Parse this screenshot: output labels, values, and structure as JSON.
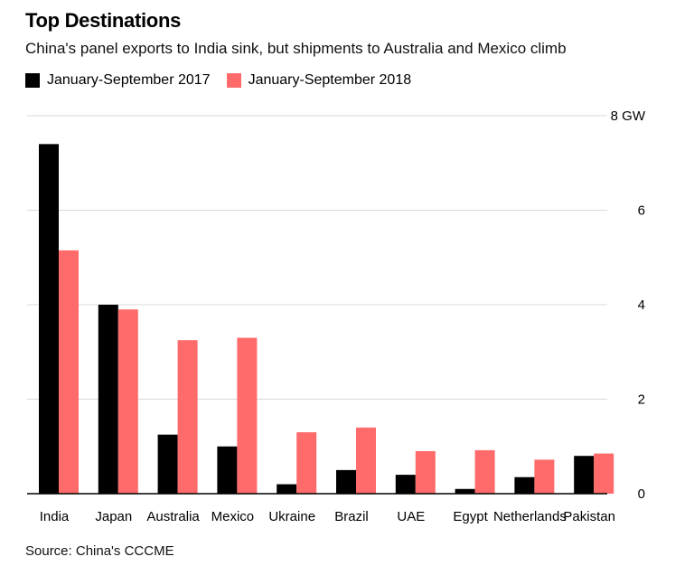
{
  "title": "Top Destinations",
  "subtitle": "China's panel exports to India sink, but shipments to Australia and Mexico climb",
  "source": "Source: China's CCCME",
  "colors": {
    "series2017": "#000000",
    "series2018": "#ff6b6b",
    "grid": "#d9d9d9",
    "axis": "#000000"
  },
  "chart_data": {
    "type": "bar",
    "title": "Top Destinations",
    "subtitle": "China's panel exports to India sink, but shipments to Australia and Mexico climb",
    "xlabel": "",
    "ylabel": "",
    "ylim": [
      0,
      8
    ],
    "yticks": [
      0,
      2,
      4,
      6,
      8
    ],
    "ytick_labels": [
      "0",
      "2",
      "4",
      "6",
      "8 GW"
    ],
    "grid": true,
    "legend_position": "top-left",
    "categories": [
      "India",
      "Japan",
      "Australia",
      "Mexico",
      "Ukraine",
      "Brazil",
      "UAE",
      "Egypt",
      "Netherlands",
      "Pakistan"
    ],
    "series": [
      {
        "name": "January-September 2017",
        "values": [
          7.4,
          4.0,
          1.25,
          1.0,
          0.2,
          0.5,
          0.4,
          0.1,
          0.35,
          0.8
        ]
      },
      {
        "name": "January-September 2018",
        "values": [
          5.15,
          3.9,
          3.25,
          3.3,
          1.3,
          1.4,
          0.9,
          0.92,
          0.72,
          0.85
        ]
      }
    ]
  }
}
